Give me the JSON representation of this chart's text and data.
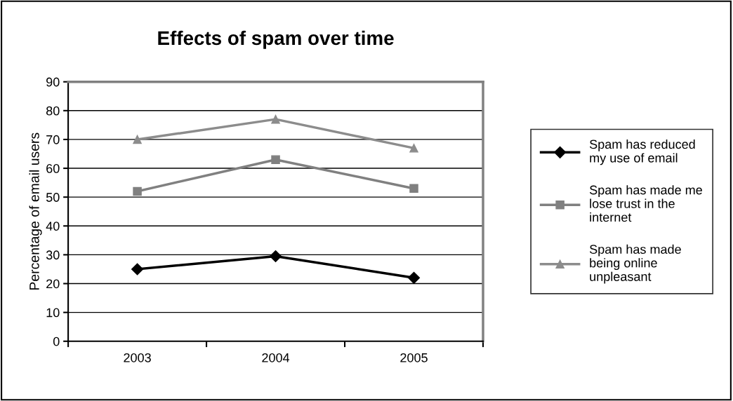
{
  "chart_data": {
    "type": "line",
    "title": "Effects of spam over time",
    "ylabel": "Percentage of email users",
    "categories": [
      "2003",
      "2004",
      "2005"
    ],
    "series": [
      {
        "name": "Spam has reduced my use of email",
        "color": "#000000",
        "marker": "diamond",
        "values": [
          25,
          29.5,
          22
        ]
      },
      {
        "name": "Spam has made me lose trust in the internet",
        "color": "#808080",
        "marker": "square",
        "values": [
          52,
          63,
          53
        ]
      },
      {
        "name": "Spam has made being online unpleasant",
        "color": "#8c8c8c",
        "marker": "triangle",
        "values": [
          70,
          77,
          67
        ]
      }
    ],
    "ylim": [
      0,
      90
    ],
    "yticks": [
      0,
      10,
      20,
      30,
      40,
      50,
      60,
      70,
      80,
      90
    ],
    "grid": "y",
    "legend": "right",
    "line_style": "solid"
  }
}
